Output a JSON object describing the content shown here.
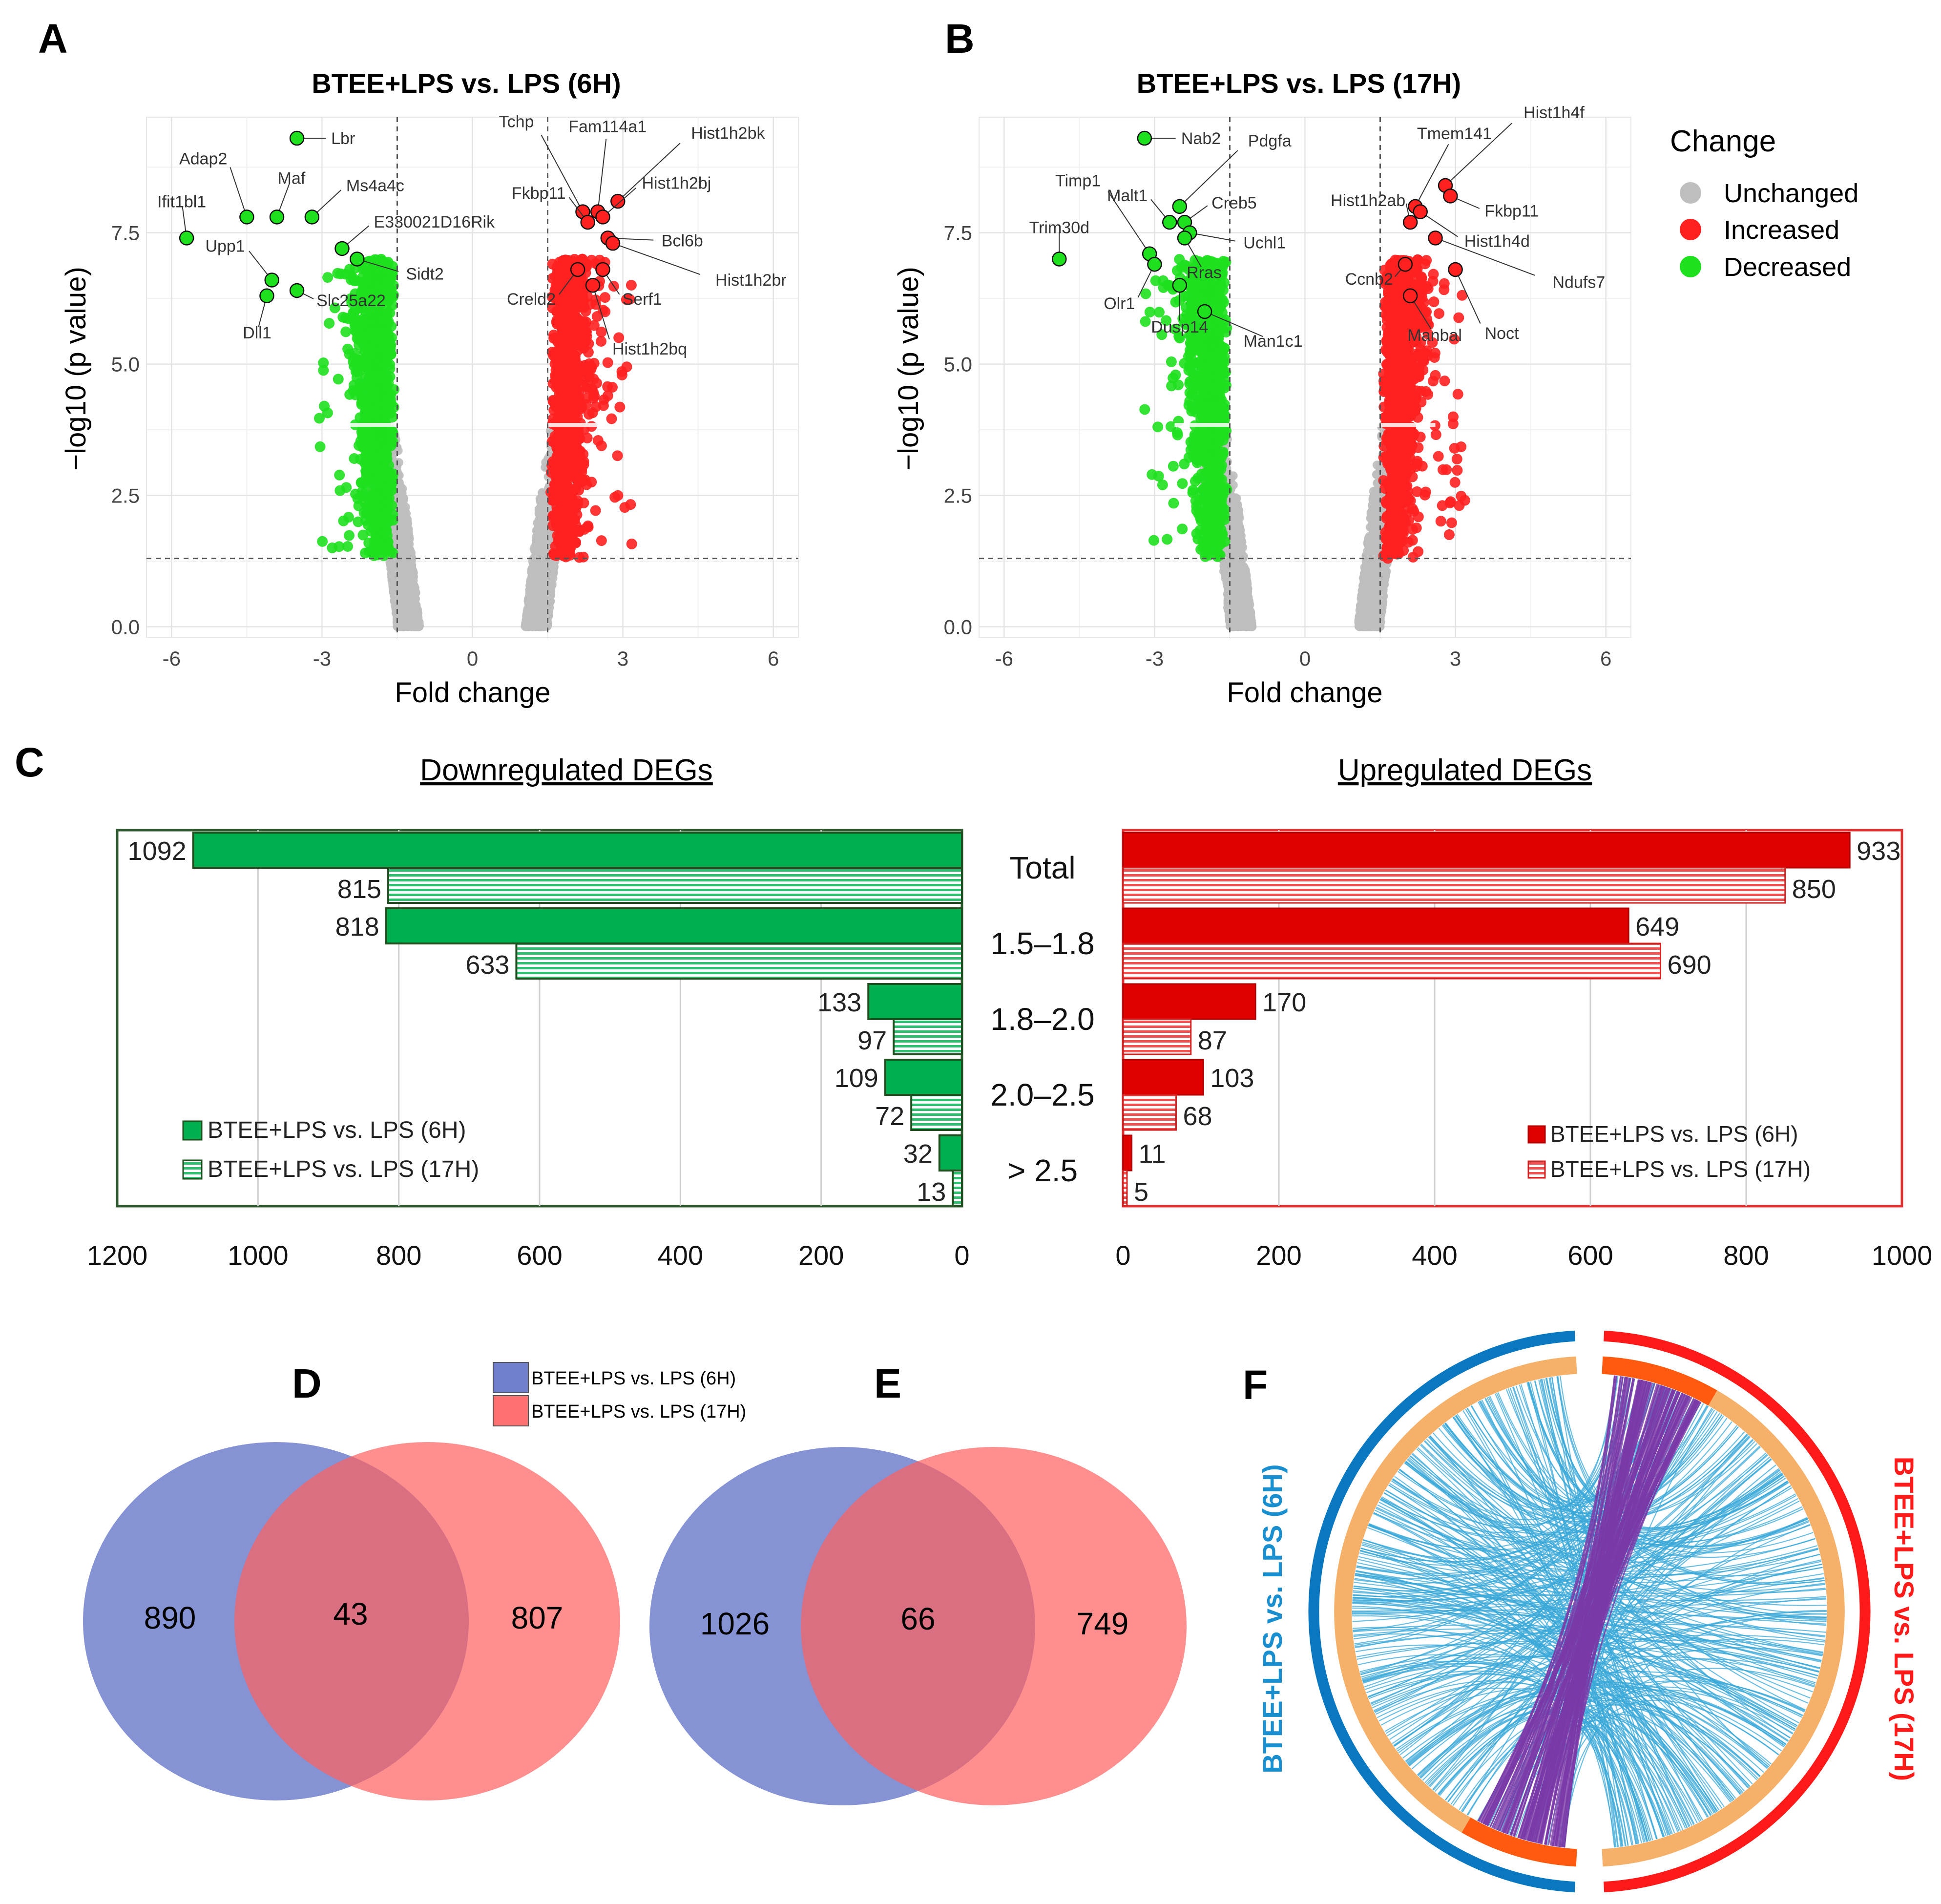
{
  "panel_letters": {
    "A": "A",
    "B": "B",
    "C": "C",
    "D": "D",
    "E": "E",
    "F": "F"
  },
  "colors": {
    "unchanged": "#bebebe",
    "increased": "#ff2020",
    "decreased": "#1ee01e",
    "down_bar": "#00b050",
    "down_edge": "#1f5a1f",
    "up_bar": "#e00000",
    "up_edge": "#c00000",
    "venn_6h": "#7080cc",
    "venn_17h": "#ff7070",
    "venn_overlap": "#c04a6a",
    "circos_6h": "#0a78c0",
    "circos_17h": "#ff1a1a",
    "circos_inner": "#f5b06a",
    "circos_mark": "#ff5a10",
    "circos_link": "#3aa8d8",
    "circos_shared": "#7a3aa8",
    "title": "#111111"
  },
  "chart_data": [
    {
      "id": "volcano-6h",
      "type": "scatter",
      "title": "BTEE+LPS  vs. LPS (6H)",
      "xlabel": "Fold change",
      "ylabel": "−log10 (p value)",
      "xlim": [
        -6.5,
        6.5
      ],
      "ylim": [
        -0.2,
        9.7
      ],
      "x_ticks": [
        -6,
        -3,
        0,
        3,
        6
      ],
      "x_tick_labels": [
        "-6",
        "-3",
        "0",
        "3",
        "6"
      ],
      "y_ticks": [
        0,
        2.5,
        5,
        7.5
      ],
      "y_tick_labels": [
        "0.0",
        "2.5",
        "5.0",
        "7.5"
      ],
      "cutoffs": {
        "fold": [
          -1.5,
          1.5
        ],
        "pvalue": 1.3
      },
      "legend": {
        "title": "Change",
        "entries": [
          "Unchanged",
          "Increased",
          "Decreased"
        ]
      },
      "labeled_points": [
        {
          "name": "Lbr",
          "x": -3.5,
          "y": 9.3,
          "change": "Decreased"
        },
        {
          "name": "Adap2",
          "x": -4.5,
          "y": 7.8,
          "change": "Decreased"
        },
        {
          "name": "Maf",
          "x": -3.9,
          "y": 7.8,
          "change": "Decreased"
        },
        {
          "name": "Ms4a4c",
          "x": -3.2,
          "y": 7.8,
          "change": "Decreased"
        },
        {
          "name": "Ifit1bl1",
          "x": -5.7,
          "y": 7.4,
          "change": "Decreased"
        },
        {
          "name": "E330021D16Rik",
          "x": -2.6,
          "y": 7.2,
          "change": "Decreased"
        },
        {
          "name": "Upp1",
          "x": -4.0,
          "y": 6.6,
          "change": "Decreased"
        },
        {
          "name": "Sidt2",
          "x": -2.3,
          "y": 7.0,
          "change": "Decreased"
        },
        {
          "name": "Slc25a22",
          "x": -3.5,
          "y": 6.4,
          "change": "Decreased"
        },
        {
          "name": "Dll1",
          "x": -4.1,
          "y": 6.3,
          "change": "Decreased"
        },
        {
          "name": "Tchp",
          "x": 2.2,
          "y": 7.9,
          "change": "Increased"
        },
        {
          "name": "Fam114a1",
          "x": 2.5,
          "y": 7.9,
          "change": "Increased"
        },
        {
          "name": "Hist1h2bk",
          "x": 2.9,
          "y": 8.1,
          "change": "Increased"
        },
        {
          "name": "Fkbp11",
          "x": 2.3,
          "y": 7.7,
          "change": "Increased"
        },
        {
          "name": "Hist1h2bj",
          "x": 2.6,
          "y": 7.8,
          "change": "Increased"
        },
        {
          "name": "Bcl6b",
          "x": 2.7,
          "y": 7.4,
          "change": "Increased"
        },
        {
          "name": "Hist1h2br",
          "x": 2.8,
          "y": 7.3,
          "change": "Increased"
        },
        {
          "name": "Creld2",
          "x": 2.1,
          "y": 6.8,
          "change": "Increased"
        },
        {
          "name": "Serf1",
          "x": 2.6,
          "y": 6.8,
          "change": "Increased"
        },
        {
          "name": "Hist1h2bq",
          "x": 2.4,
          "y": 6.5,
          "change": "Increased"
        }
      ]
    },
    {
      "id": "volcano-17h",
      "type": "scatter",
      "title": "BTEE+LPS  vs. LPS (17H)",
      "xlabel": "Fold change",
      "ylabel": "−log10 (p value)",
      "xlim": [
        -6.5,
        6.5
      ],
      "ylim": [
        -0.2,
        9.7
      ],
      "x_ticks": [
        -6,
        -3,
        0,
        3,
        6
      ],
      "x_tick_labels": [
        "-6",
        "-3",
        "0",
        "3",
        "6"
      ],
      "y_ticks": [
        0,
        2.5,
        5,
        7.5
      ],
      "y_tick_labels": [
        "0.0",
        "2.5",
        "5.0",
        "7.5"
      ],
      "cutoffs": {
        "fold": [
          -1.5,
          1.5
        ],
        "pvalue": 1.3
      },
      "labeled_points": [
        {
          "name": "Nab2",
          "x": -3.2,
          "y": 9.3,
          "change": "Decreased"
        },
        {
          "name": "Timp1",
          "x": -3.1,
          "y": 7.1,
          "change": "Decreased"
        },
        {
          "name": "Pdgfa",
          "x": -2.5,
          "y": 8.0,
          "change": "Decreased"
        },
        {
          "name": "Malt1",
          "x": -2.7,
          "y": 7.7,
          "change": "Decreased"
        },
        {
          "name": "Creb5",
          "x": -2.4,
          "y": 7.7,
          "change": "Decreased"
        },
        {
          "name": "Uchl1",
          "x": -2.3,
          "y": 7.5,
          "change": "Decreased"
        },
        {
          "name": "Trim30d",
          "x": -4.9,
          "y": 7.0,
          "change": "Decreased"
        },
        {
          "name": "Olr1",
          "x": -3.0,
          "y": 6.9,
          "change": "Decreased"
        },
        {
          "name": "Rras",
          "x": -2.4,
          "y": 7.4,
          "change": "Decreased"
        },
        {
          "name": "Dusp14",
          "x": -2.5,
          "y": 6.5,
          "change": "Decreased"
        },
        {
          "name": "Man1c1",
          "x": -2.0,
          "y": 6.0,
          "change": "Decreased"
        },
        {
          "name": "Tmem141",
          "x": 2.2,
          "y": 8.0,
          "change": "Increased"
        },
        {
          "name": "Hist1h4f",
          "x": 2.8,
          "y": 8.4,
          "change": "Increased"
        },
        {
          "name": "Hist1h2ab",
          "x": 2.1,
          "y": 7.7,
          "change": "Increased"
        },
        {
          "name": "Fkbp11",
          "x": 2.9,
          "y": 8.2,
          "change": "Increased"
        },
        {
          "name": "Hist1h4d",
          "x": 2.3,
          "y": 7.9,
          "change": "Increased"
        },
        {
          "name": "Ccnb2",
          "x": 2.0,
          "y": 6.9,
          "change": "Increased"
        },
        {
          "name": "Ndufs7",
          "x": 2.6,
          "y": 7.4,
          "change": "Increased"
        },
        {
          "name": "Manbal",
          "x": 2.1,
          "y": 6.3,
          "change": "Increased"
        },
        {
          "name": "Noct",
          "x": 3.0,
          "y": 6.8,
          "change": "Increased"
        }
      ]
    },
    {
      "id": "deg-bars",
      "type": "bar",
      "titles": {
        "down": "Downregulated DEGs",
        "up": "Upregulated DEGs"
      },
      "categories": [
        "Total",
        "1.5–1.8",
        "1.8–2.0",
        "2.0–2.5",
        "> 2.5"
      ],
      "down": {
        "xlim": [
          0,
          1200
        ],
        "ticks": [
          1200,
          1000,
          800,
          600,
          400,
          200,
          0
        ],
        "series": [
          {
            "name": "BTEE+LPS vs. LPS (6H)",
            "values": [
              1092,
              818,
              133,
              109,
              32
            ]
          },
          {
            "name": "BTEE+LPS vs. LPS (17H)",
            "values": [
              815,
              633,
              97,
              72,
              13
            ]
          }
        ]
      },
      "up": {
        "xlim": [
          0,
          1000
        ],
        "ticks": [
          0,
          200,
          400,
          600,
          800,
          1000
        ],
        "series": [
          {
            "name": "BTEE+LPS vs. LPS (6H)",
            "values": [
              933,
              649,
              170,
              103,
              11
            ]
          },
          {
            "name": "BTEE+LPS vs. LPS (17H)",
            "values": [
              850,
              690,
              87,
              68,
              5
            ]
          }
        ]
      }
    },
    {
      "id": "venn-d",
      "type": "venn",
      "sets": [
        "BTEE+LPS vs. LPS (6H)",
        "BTEE+LPS vs. LPS (17H)"
      ],
      "only_6h": 890,
      "shared": 43,
      "only_17h": 807
    },
    {
      "id": "venn-e",
      "type": "venn",
      "sets": [
        "BTEE+LPS vs. LPS (6H)",
        "BTEE+LPS vs. LPS (17H)"
      ],
      "only_6h": 1026,
      "shared": 66,
      "only_17h": 749
    },
    {
      "id": "circos-f",
      "type": "chord",
      "left_label": "BTEE+LPS vs. LPS (6H)",
      "right_label": "BTEE+LPS vs. LPS (17H)"
    }
  ]
}
